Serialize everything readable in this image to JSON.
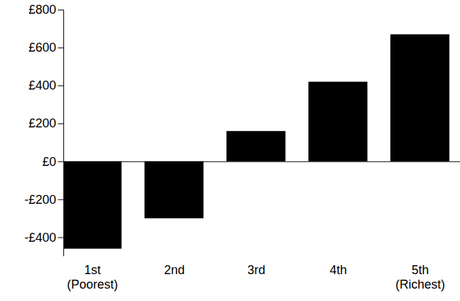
{
  "chart_data": {
    "type": "bar",
    "categories": [
      "1st\n(Poorest)",
      "2nd",
      "3rd",
      "4th",
      "5th\n(Richest)"
    ],
    "values": [
      -460,
      -300,
      160,
      420,
      670
    ],
    "color": "#000000",
    "ylim": [
      -500,
      800
    ],
    "yticks": [
      {
        "value": -400,
        "label": "-£400"
      },
      {
        "value": -200,
        "label": "-£200"
      },
      {
        "value": 0,
        "label": "£0"
      },
      {
        "value": 200,
        "label": "£200"
      },
      {
        "value": 400,
        "label": "£400"
      },
      {
        "value": 600,
        "label": "£600"
      },
      {
        "value": 800,
        "label": "£800"
      }
    ],
    "grid": false
  }
}
